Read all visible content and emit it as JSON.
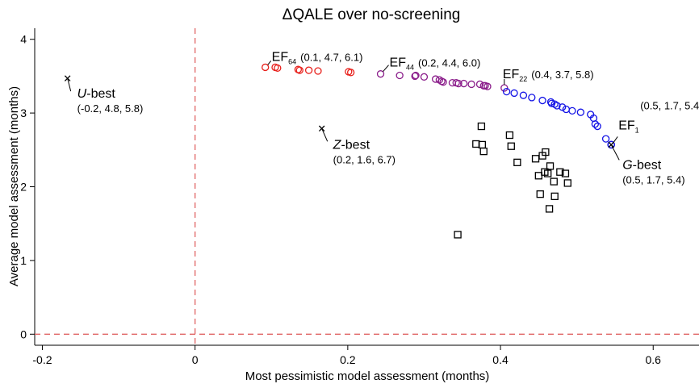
{
  "chart_data": {
    "type": "scatter",
    "title": "ΔQALE over no-screening",
    "xlabel": "Most pessimistic model assessment (months)",
    "ylabel": "Average model assessment (months)",
    "xlim": [
      -0.21,
      0.66
    ],
    "ylim": [
      -0.15,
      4.15
    ],
    "xticks": [
      -0.2,
      0,
      0.2,
      0.4,
      0.6
    ],
    "yticks": [
      0,
      1,
      2,
      3,
      4
    ],
    "x_tick_labels": [
      "-0.2",
      "0",
      "0.2",
      "0.4",
      "0.6"
    ],
    "y_tick_labels": [
      "0",
      "1",
      "2",
      "3",
      "4"
    ],
    "reference_lines": {
      "x": 0,
      "y": 0,
      "style": "dashed",
      "color": "#e06666"
    },
    "colors": {
      "red": "#e8211c",
      "purple": "#8b1e8b",
      "blue": "#1515e6",
      "black": "#000000"
    },
    "series": [
      {
        "marker": "circle",
        "color": "#e8211c",
        "x": [
          0.092,
          0.105,
          0.108,
          0.135,
          0.137,
          0.149,
          0.161,
          0.201,
          0.204
        ],
        "y": [
          3.62,
          3.62,
          3.61,
          3.59,
          3.58,
          3.58,
          3.57,
          3.56,
          3.55
        ]
      },
      {
        "marker": "circle",
        "color": "#8b1e8b",
        "x": [
          0.243,
          0.268,
          0.288,
          0.289,
          0.3,
          0.315,
          0.32,
          0.323,
          0.325,
          0.337,
          0.342,
          0.345,
          0.352,
          0.362,
          0.373,
          0.378,
          0.38,
          0.383,
          0.405
        ],
        "y": [
          3.53,
          3.51,
          3.5,
          3.51,
          3.49,
          3.46,
          3.45,
          3.43,
          3.42,
          3.41,
          3.41,
          3.4,
          3.4,
          3.39,
          3.39,
          3.37,
          3.37,
          3.36,
          3.34
        ]
      },
      {
        "marker": "circle",
        "color": "#1515e6",
        "x": [
          0.408,
          0.418,
          0.43,
          0.441,
          0.455,
          0.466,
          0.467,
          0.471,
          0.474,
          0.481,
          0.486,
          0.494,
          0.505,
          0.518,
          0.522,
          0.524,
          0.527,
          0.538,
          0.545
        ],
        "y": [
          3.29,
          3.27,
          3.24,
          3.21,
          3.17,
          3.15,
          3.13,
          3.12,
          3.1,
          3.08,
          3.05,
          3.03,
          3.01,
          2.98,
          2.93,
          2.85,
          2.82,
          2.65,
          2.57
        ]
      },
      {
        "marker": "square",
        "color": "#000000",
        "x": [
          0.344,
          0.368,
          0.375,
          0.376,
          0.378,
          0.412,
          0.414,
          0.422,
          0.446,
          0.45,
          0.452,
          0.455,
          0.458,
          0.459,
          0.462,
          0.464,
          0.465,
          0.47,
          0.471,
          0.478,
          0.485,
          0.488
        ],
        "y": [
          1.35,
          2.58,
          2.82,
          2.57,
          2.48,
          2.7,
          2.55,
          2.33,
          2.38,
          2.15,
          1.9,
          2.42,
          2.2,
          2.47,
          2.18,
          1.7,
          2.28,
          2.07,
          1.87,
          2.2,
          2.18,
          2.05
        ]
      }
    ],
    "special_points": [
      {
        "marker": "x",
        "x": -0.167,
        "y": 3.47,
        "label_italic": "U",
        "label_rest": "-best",
        "coords": "(-0.2, 4.8, 5.8)"
      },
      {
        "marker": "x",
        "x": 0.166,
        "y": 2.79,
        "label_italic": "Z",
        "label_rest": "-best",
        "coords": "(0.2, 1.6, 6.7)"
      },
      {
        "marker": "circle-x",
        "x": 0.545,
        "y": 2.57,
        "label_italic": "G",
        "label_rest": "-best",
        "coords": "(0.5, 1.7, 5.4)"
      }
    ],
    "annotations": [
      {
        "id": "ef64",
        "main": "EF",
        "sub": "64",
        "coords": "(0.1, 4.7, 6.1)",
        "x": 0.092,
        "y": 3.62
      },
      {
        "id": "ef44",
        "main": "EF",
        "sub": "44",
        "coords": "(0.2, 4.4, 6.0)",
        "x": 0.243,
        "y": 3.53
      },
      {
        "id": "ef22",
        "main": "EF",
        "sub": "22",
        "coords": "(0.4, 3.7, 5.8)",
        "x": 0.405,
        "y": 3.34
      },
      {
        "id": "ef1",
        "main": "EF",
        "sub": "1",
        "coords": "(0.5, 1.7, 5.4)",
        "x": 0.545,
        "y": 2.57
      }
    ]
  }
}
